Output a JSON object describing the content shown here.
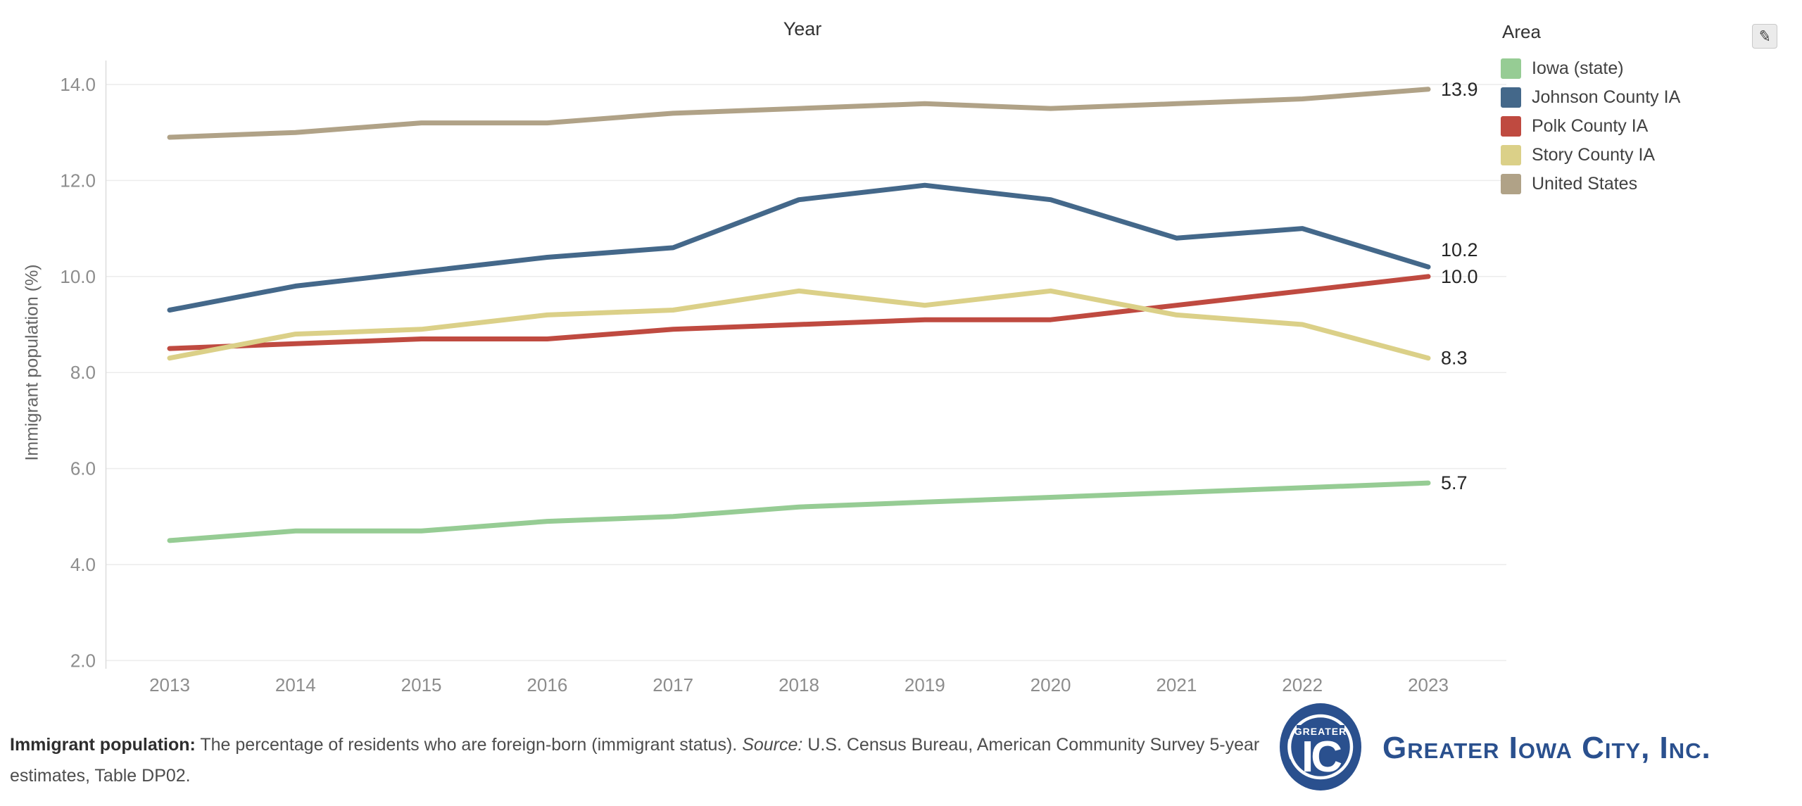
{
  "header": {
    "title": "Year"
  },
  "y_axis": {
    "label": "Immigrant population (%)"
  },
  "legend": {
    "title": "Area",
    "edit_icon_glyph": "✎"
  },
  "chart_data": {
    "type": "line",
    "x": [
      2013,
      2014,
      2015,
      2016,
      2017,
      2018,
      2019,
      2020,
      2021,
      2022,
      2023
    ],
    "series": [
      {
        "name": "Iowa (state)",
        "color": "#96cc94",
        "values": [
          4.5,
          4.7,
          4.7,
          4.9,
          5.0,
          5.2,
          5.3,
          5.4,
          5.5,
          5.6,
          5.7
        ],
        "end_label": "5.7"
      },
      {
        "name": "Johnson County IA",
        "color": "#44688a",
        "values": [
          9.3,
          9.8,
          10.1,
          10.4,
          10.6,
          11.6,
          11.9,
          11.6,
          10.8,
          11.0,
          10.2
        ],
        "end_label": "10.2"
      },
      {
        "name": "Polk County IA",
        "color": "#bf4a40",
        "values": [
          8.5,
          8.6,
          8.7,
          8.7,
          8.9,
          9.0,
          9.1,
          9.1,
          9.4,
          9.7,
          10.0
        ],
        "end_label": "10.0"
      },
      {
        "name": "Story County IA",
        "color": "#dbd088",
        "values": [
          8.3,
          8.8,
          8.9,
          9.2,
          9.3,
          9.7,
          9.4,
          9.7,
          9.2,
          9.0,
          8.3
        ],
        "end_label": "8.3"
      },
      {
        "name": "United States",
        "color": "#b0a287",
        "values": [
          12.9,
          13.0,
          13.2,
          13.2,
          13.4,
          13.5,
          13.6,
          13.5,
          13.6,
          13.7,
          13.9
        ],
        "end_label": "13.9"
      }
    ],
    "title": "Year",
    "xlabel": "Year",
    "ylabel": "Immigrant population (%)",
    "ylim": [
      2.0,
      14.0
    ],
    "yticks": [
      {
        "value": 14,
        "label": "14.0"
      },
      {
        "value": 12,
        "label": "12.0"
      },
      {
        "value": 10,
        "label": "10.0"
      },
      {
        "value": 8,
        "label": "8.0"
      },
      {
        "value": 6,
        "label": "6.0"
      },
      {
        "value": 4,
        "label": "4.0"
      },
      {
        "value": 2,
        "label": "2.0"
      }
    ],
    "xticks": [
      "2013",
      "2014",
      "2015",
      "2016",
      "2017",
      "2018",
      "2019",
      "2020",
      "2021",
      "2022",
      "2023"
    ],
    "grid": "horizontal",
    "legend_position": "right"
  },
  "footer": {
    "term_label": "Immigrant population:",
    "definition": " The percentage of residents who are foreign-born (immigrant status). ",
    "source_label": "Source:",
    "source_text": " U.S. Census Bureau, American Community Survey 5-year estimates, Table DP02."
  },
  "branding": {
    "org_name": "Greater Iowa City, Inc.",
    "logo_top_text": "GREATER",
    "logo_monogram": "IC",
    "brand_color": "#2a508e"
  },
  "colors": {
    "gridline": "#ececec",
    "axis_line": "#dcdcdc",
    "tick_text": "#8d8d8d",
    "end_label_text": "#262626"
  }
}
